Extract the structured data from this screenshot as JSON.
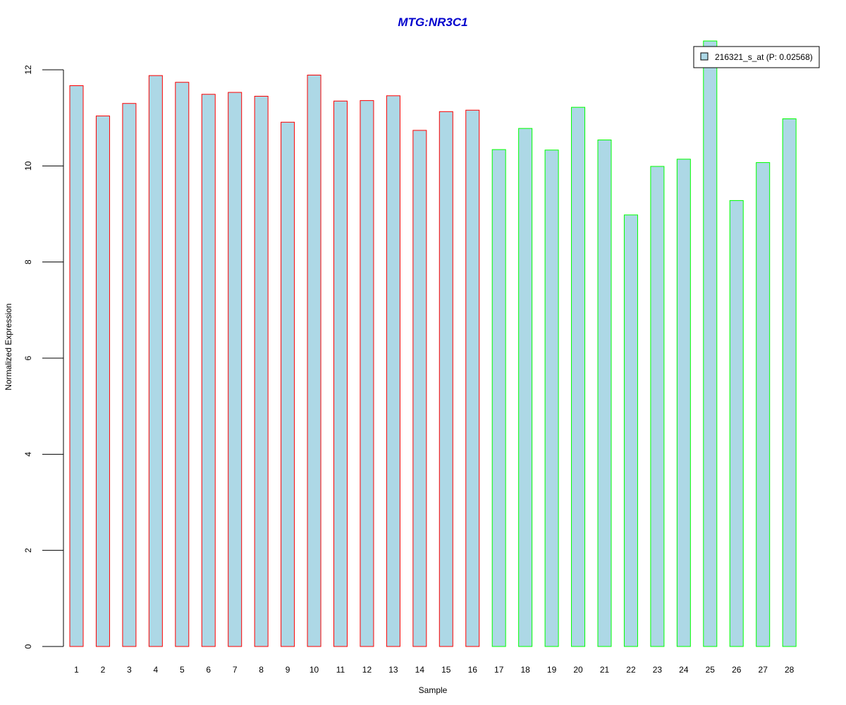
{
  "colors": {
    "bar_fill": "#add8e6",
    "group1_border": "#ff0000",
    "group2_border": "#00ff00",
    "title": "#0000cd",
    "axis": "#000000"
  },
  "chart_data": {
    "type": "bar",
    "title": "MTG:NR3C1",
    "xlabel": "Sample",
    "ylabel": "Normalized Expression",
    "ylim": [
      0,
      12
    ],
    "yticks": [
      "0",
      "2",
      "4",
      "6",
      "8",
      "10",
      "12"
    ],
    "grid": false,
    "legend_position": "top-right",
    "categories": [
      "1",
      "2",
      "3",
      "4",
      "5",
      "6",
      "7",
      "8",
      "9",
      "10",
      "11",
      "12",
      "13",
      "14",
      "15",
      "16",
      "17",
      "18",
      "19",
      "20",
      "21",
      "22",
      "23",
      "24",
      "25",
      "26",
      "27",
      "28"
    ],
    "series": [
      {
        "name": "216321_s_at (P: 0.02568)",
        "values": [
          11.67,
          11.04,
          11.3,
          11.88,
          11.74,
          11.49,
          11.53,
          11.45,
          10.91,
          11.89,
          11.35,
          11.36,
          11.46,
          10.74,
          11.13,
          11.16,
          10.34,
          10.78,
          10.33,
          11.22,
          10.54,
          8.98,
          9.99,
          10.14,
          12.6,
          9.28,
          10.07,
          10.98
        ],
        "groups": [
          1,
          1,
          1,
          1,
          1,
          1,
          1,
          1,
          1,
          1,
          1,
          1,
          1,
          1,
          1,
          1,
          2,
          2,
          2,
          2,
          2,
          2,
          2,
          2,
          2,
          2,
          2,
          2
        ]
      }
    ]
  }
}
